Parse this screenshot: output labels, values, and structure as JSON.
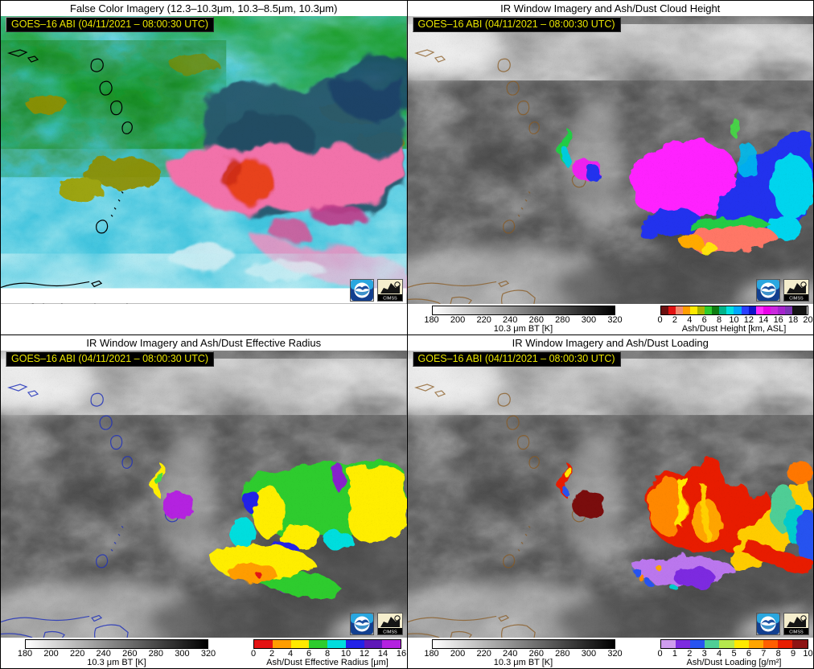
{
  "figure": {
    "stamp_text": "GOES–16 ABI (04/11/2021 – 08:00:30 UTC)",
    "stamp_fg": "#e8e400",
    "stamp_bg": "#000000"
  },
  "logos": {
    "noaa": "NOAA",
    "cimss_label": "CIMSS"
  },
  "panels": [
    {
      "id": "false-color",
      "title": "False Color Imagery (12.3–10.3μm, 10.3–8.5μm, 10.3μm)",
      "timestamp": "GOES–16 ABI (04/11/2021 – 08:00:30 UTC)",
      "colorbars": []
    },
    {
      "id": "cloud-height",
      "title": "IR Window Imagery and Ash/Dust Cloud Height",
      "timestamp": "GOES–16 ABI (04/11/2021 – 08:00:30 UTC)",
      "colorbars": [
        {
          "name": "bt",
          "label": "10.3 μm BT [K]",
          "min": 180,
          "max": 320,
          "ticks": [
            180,
            200,
            220,
            240,
            260,
            280,
            300,
            320
          ],
          "gradient": [
            "#ffffff",
            "#000000"
          ]
        },
        {
          "name": "height",
          "label": "Ash/Dust Height [km, ASL]",
          "min": 0,
          "max": 20,
          "ticks": [
            0,
            2,
            4,
            6,
            8,
            10,
            12,
            14,
            16,
            18,
            20
          ],
          "segments": [
            "#6b1010",
            "#e31212",
            "#f28a70",
            "#ff9d00",
            "#ffe900",
            "#a8b400",
            "#2ecc2e",
            "#0f7d12",
            "#00b389",
            "#00e0e0",
            "#00a8ff",
            "#2a3fff",
            "#0f14c8",
            "#ff2bff",
            "#e800e8",
            "#c928dd",
            "#a424cc",
            "#7d35b5",
            "#141414",
            "#141414"
          ]
        }
      ]
    },
    {
      "id": "effective-radius",
      "title": "IR Window Imagery and Ash/Dust Effective Radius",
      "timestamp": "GOES–16 ABI (04/11/2021 – 08:00:30 UTC)",
      "colorbars": [
        {
          "name": "bt",
          "label": "10.3 μm BT [K]",
          "min": 180,
          "max": 320,
          "ticks": [
            180,
            200,
            220,
            240,
            260,
            280,
            300,
            320
          ],
          "gradient": [
            "#ffffff",
            "#000000"
          ]
        },
        {
          "name": "radius",
          "label": "Ash/Dust Effective Radius [μm]",
          "min": 0,
          "max": 16,
          "ticks": [
            0,
            2,
            4,
            6,
            8,
            10,
            12,
            14,
            16
          ],
          "segments": [
            "#e31212",
            "#ff9d00",
            "#ffe900",
            "#2ecc2e",
            "#00dede",
            "#2222e8",
            "#5f18b8",
            "#b422e0"
          ]
        }
      ]
    },
    {
      "id": "loading",
      "title": "IR Window Imagery and Ash/Dust Loading",
      "timestamp": "GOES–16 ABI (04/11/2021 – 08:00:30 UTC)",
      "colorbars": [
        {
          "name": "bt",
          "label": "10.3 μm BT [K]",
          "min": 180,
          "max": 320,
          "ticks": [
            180,
            200,
            220,
            240,
            260,
            280,
            300,
            320
          ],
          "gradient": [
            "#ffffff",
            "#000000"
          ]
        },
        {
          "name": "loading",
          "label": "Ash/Dust Loading [g/m²]",
          "min": 0,
          "max": 10,
          "ticks": [
            0,
            1,
            2,
            3,
            4,
            5,
            6,
            7,
            8,
            9,
            10
          ],
          "segments": [
            "#cf9dee",
            "#7d2ce0",
            "#2853f0",
            "#4fce96",
            "#b6e84e",
            "#ffe900",
            "#ffa500",
            "#ff5e00",
            "#e81e00",
            "#8d1414"
          ]
        }
      ]
    }
  ]
}
